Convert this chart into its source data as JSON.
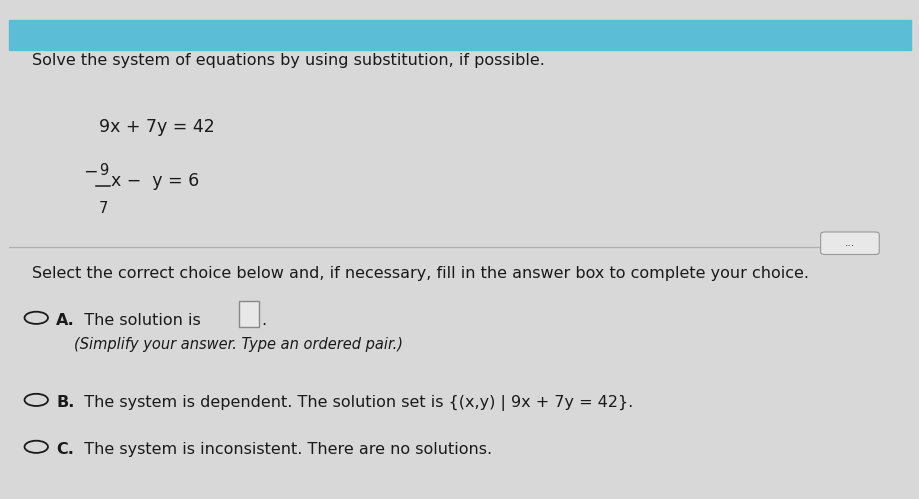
{
  "background_top_color": "#5bbdd6",
  "background_body_color": "#d8d8d8",
  "background_white_color": "#f2f2f2",
  "text_color": "#1a1a1a",
  "title_text": "Solve the system of equations by using substitution, if possible.",
  "eq1": "9x + 7y = 42",
  "eq2_minus": "−",
  "eq2_frac_num": "9",
  "eq2_frac_den": "7",
  "eq2_rest": "x −  y = 6",
  "divider_color": "#b0b0b0",
  "dots_bg": "#e8e8e8",
  "select_text": "Select the correct choice below and, if necessary, fill in the answer box to complete your choice.",
  "choice_A_label": "A.",
  "choice_A_main": "  The solution is ",
  "choice_A_sub": "(Simplify your answer. Type an ordered pair.)",
  "choice_B_label": "B.",
  "choice_B_main": "  The system is dependent. The solution set is {(x,y) | 9x + 7y = 42}.",
  "choice_C_label": "C.",
  "choice_C_main": "  The system is inconsistent. There are no solutions.",
  "font_size_title": 11.5,
  "font_size_eq": 12.5,
  "font_size_choice": 11.5,
  "font_size_sub": 10.5,
  "figsize": [
    9.2,
    4.99
  ],
  "dpi": 100
}
